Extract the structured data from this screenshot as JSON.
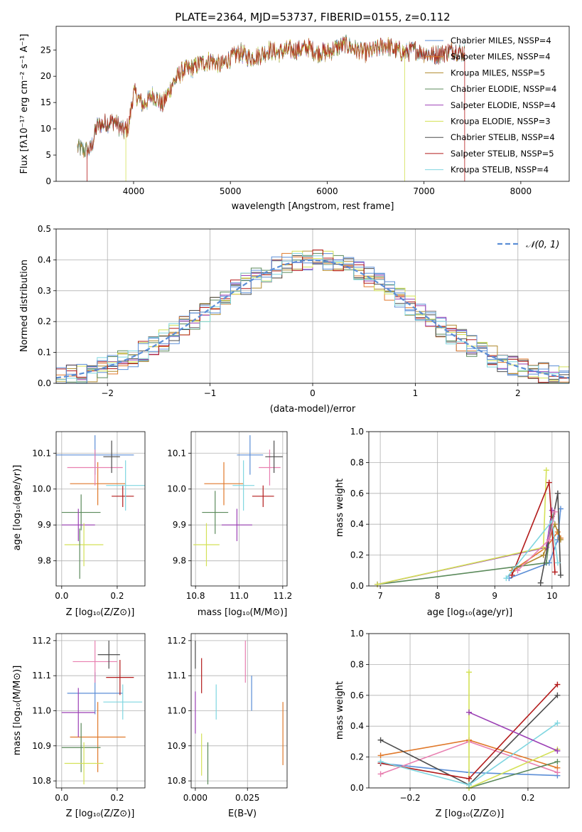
{
  "figure_title": "PLATE=2364, MJD=53737, FIBERID=0155, z=0.112",
  "colors": {
    "Chabrier MILES": "#5b8ed6",
    "Salpeter MILES": "#e0792b",
    "Kroupa MILES": "#b08a2e",
    "Chabrier ELODIE": "#5b8a5b",
    "Salpeter ELODIE": "#9b3fb5",
    "Kroupa ELODIE": "#d4e157",
    "Chabrier STELIB": "#4d4d4d",
    "Salpeter STELIB": "#b31b1b",
    "Kroupa STELIB": "#7fd6e0",
    "Normal": "#5b8ed6",
    "Pink": "#e87fb0"
  },
  "chart_data": [
    {
      "id": "spectrum",
      "type": "line",
      "title": "PLATE=2364, MJD=53737, FIBERID=0155, z=0.112",
      "xlabel": "wavelength [Angstrom, rest frame]",
      "ylabel": "Flux [fλ10⁻¹⁷ erg cm⁻² s⁻¹ A⁻¹]",
      "xlim": [
        3200,
        8500
      ],
      "ylim": [
        0,
        29.5
      ],
      "xticks": [
        4000,
        5000,
        6000,
        7000,
        8000
      ],
      "yticks": [
        0,
        5,
        10,
        15,
        20,
        25
      ],
      "legend_position": "top-right",
      "series_names": [
        "Chabrier MILES, NSSP=4",
        "Salpeter MILES, NSSP=4",
        "Kroupa MILES, NSSP=5",
        "Chabrier ELODIE, NSSP=4",
        "Salpeter ELODIE, NSSP=4",
        "Kroupa ELODIE, NSSP=3",
        "Chabrier STELIB, NSSP=4",
        "Salpeter STELIB, NSSP=5",
        "Kroupa STELIB, NSSP=4"
      ],
      "envelope": {
        "x": [
          3420,
          3500,
          3560,
          3620,
          3700,
          3800,
          3900,
          3950,
          4000,
          4100,
          4200,
          4300,
          4400,
          4500,
          4600,
          4700,
          4800,
          4900,
          5000,
          5100,
          5200,
          5300,
          5400,
          5500,
          5600,
          5700,
          5800,
          5900,
          6000,
          6100,
          6200,
          6300,
          6400,
          6500,
          6600,
          6700,
          6800,
          6900,
          7000,
          7100,
          7200,
          7300,
          7400
        ],
        "y": [
          6.5,
          5.8,
          6.2,
          10.5,
          11.0,
          11.5,
          9.5,
          10.5,
          17.0,
          14.5,
          16.5,
          14.5,
          18.5,
          21.0,
          21.5,
          22.5,
          23.0,
          22.0,
          23.5,
          24.5,
          23.5,
          24.0,
          25.0,
          24.5,
          25.0,
          25.0,
          25.5,
          24.5,
          24.5,
          25.5,
          26.0,
          25.0,
          24.5,
          25.0,
          26.0,
          25.0,
          24.5,
          25.0,
          24.5,
          24.0,
          24.5,
          25.0,
          24.5
        ]
      }
    },
    {
      "id": "residuals",
      "type": "line",
      "xlabel": "(data-model)/error",
      "ylabel": "Normed distribution",
      "xlim": [
        -2.5,
        2.5
      ],
      "ylim": [
        0,
        0.5
      ],
      "xticks": [
        -2,
        -1,
        0,
        1,
        2
      ],
      "yticks": [
        0.0,
        0.1,
        0.2,
        0.3,
        0.4,
        0.5
      ],
      "legend_label": "𝒩(0, 1)",
      "legend_position": "top-right",
      "grid": true
    },
    {
      "id": "age_vs_Z",
      "type": "scatter",
      "xlabel": "Z [log₁₀(Z/Z⊙)]",
      "ylabel": "age  [log₁₀(age/yr)]",
      "xlim": [
        -0.02,
        0.3
      ],
      "ylim": [
        9.73,
        10.16
      ],
      "xticks": [
        0.0,
        0.2
      ],
      "yticks": [
        9.8,
        9.9,
        10.0,
        10.1
      ],
      "grid": true,
      "points": [
        {
          "s": "Chabrier MILES",
          "x": 0.12,
          "xerr": 0.14,
          "y": 10.095,
          "yerr": 0.055
        },
        {
          "s": "Salpeter MILES",
          "x": 0.13,
          "xerr": 0.1,
          "y": 10.015,
          "yerr": 0.06
        },
        {
          "s": "Pink",
          "x": 0.12,
          "xerr": 0.1,
          "y": 10.06,
          "yerr": 0.05
        },
        {
          "s": "Chabrier ELODIE",
          "x": 0.07,
          "xerr": 0.07,
          "y": 9.935,
          "yerr": 0.05
        },
        {
          "s": "Salpeter ELODIE",
          "x": 0.06,
          "xerr": 0.06,
          "y": 9.9,
          "yerr": 0.045
        },
        {
          "s": "Kroupa ELODIE",
          "x": 0.08,
          "xerr": 0.07,
          "y": 9.845,
          "yerr": 0.06
        },
        {
          "s": "Chabrier STELIB",
          "x": 0.18,
          "xerr": 0.03,
          "y": 10.09,
          "yerr": 0.045
        },
        {
          "s": "Salpeter STELIB",
          "x": 0.22,
          "xerr": 0.04,
          "y": 9.98,
          "yerr": 0.03
        },
        {
          "s": "Kroupa STELIB",
          "x": 0.23,
          "xerr": 0.07,
          "y": 10.01,
          "yerr": 0.07
        },
        {
          "s": "Chabrier ELODIE",
          "x": 0.065,
          "xerr": 0.0,
          "y": 9.82,
          "yerr": 0.07
        }
      ]
    },
    {
      "id": "age_vs_mass",
      "type": "scatter",
      "xlabel": "mass [log₁₀(M/M⊙)]",
      "xlim": [
        10.78,
        11.22
      ],
      "ylim": [
        9.73,
        10.16
      ],
      "xticks": [
        10.8,
        11.0,
        11.2
      ],
      "yticks": [
        9.8,
        9.9,
        10.0,
        10.1
      ],
      "grid": true,
      "points": [
        {
          "s": "Chabrier MILES",
          "x": 11.05,
          "xerr": 0.06,
          "y": 10.095,
          "yerr": 0.055
        },
        {
          "s": "Salpeter MILES",
          "x": 10.93,
          "xerr": 0.09,
          "y": 10.015,
          "yerr": 0.06
        },
        {
          "s": "Pink",
          "x": 11.14,
          "xerr": 0.05,
          "y": 10.06,
          "yerr": 0.05
        },
        {
          "s": "Chabrier ELODIE",
          "x": 10.89,
          "xerr": 0.06,
          "y": 9.935,
          "yerr": 0.06
        },
        {
          "s": "Salpeter ELODIE",
          "x": 10.99,
          "xerr": 0.07,
          "y": 9.9,
          "yerr": 0.045
        },
        {
          "s": "Kroupa ELODIE",
          "x": 10.85,
          "xerr": 0.06,
          "y": 9.845,
          "yerr": 0.06
        },
        {
          "s": "Chabrier STELIB",
          "x": 11.16,
          "xerr": 0.04,
          "y": 10.09,
          "yerr": 0.045
        },
        {
          "s": "Salpeter STELIB",
          "x": 11.11,
          "xerr": 0.05,
          "y": 9.98,
          "yerr": 0.03
        },
        {
          "s": "Kroupa STELIB",
          "x": 11.02,
          "xerr": 0.05,
          "y": 10.01,
          "yerr": 0.07
        }
      ]
    },
    {
      "id": "weight_vs_age",
      "type": "line",
      "xlabel": "age  [log₁₀(age/yr)]",
      "ylabel": "mass weight",
      "xlim": [
        6.8,
        10.3
      ],
      "ylim": [
        0,
        1.0
      ],
      "xticks": [
        7,
        8,
        9,
        10
      ],
      "yticks": [
        0.0,
        0.2,
        0.4,
        0.6,
        0.8,
        1.0
      ],
      "grid": true,
      "series": [
        {
          "s": "Chabrier MILES",
          "x": [
            9.25,
            9.95,
            10.1,
            10.15
          ],
          "y": [
            0.05,
            0.15,
            0.3,
            0.5
          ]
        },
        {
          "s": "Salpeter MILES",
          "x": [
            9.35,
            9.9,
            10.1,
            10.15
          ],
          "y": [
            0.11,
            0.25,
            0.35,
            0.31
          ]
        },
        {
          "s": "Kroupa MILES",
          "x": [
            9.3,
            9.85,
            10.05,
            10.15
          ],
          "y": [
            0.1,
            0.2,
            0.4,
            0.3
          ]
        },
        {
          "s": "Chabrier ELODIE",
          "x": [
            6.95,
            9.9,
            10.0
          ],
          "y": [
            0.01,
            0.15,
            0.45
          ]
        },
        {
          "s": "Salpeter ELODIE",
          "x": [
            6.95,
            9.9,
            10.0
          ],
          "y": [
            0.01,
            0.25,
            0.49
          ]
        },
        {
          "s": "Kroupa ELODIE",
          "x": [
            6.95,
            9.85,
            9.9
          ],
          "y": [
            0.01,
            0.25,
            0.75
          ]
        },
        {
          "s": "Chabrier STELIB",
          "x": [
            9.8,
            10.1,
            10.15
          ],
          "y": [
            0.02,
            0.6,
            0.07
          ]
        },
        {
          "s": "Salpeter STELIB",
          "x": [
            9.3,
            9.95,
            10.05
          ],
          "y": [
            0.07,
            0.67,
            0.09
          ]
        },
        {
          "s": "Kroupa STELIB",
          "x": [
            9.2,
            10.0,
            10.1
          ],
          "y": [
            0.05,
            0.42,
            0.15
          ]
        },
        {
          "s": "Pink",
          "x": [
            9.4,
            9.95,
            10.05
          ],
          "y": [
            0.1,
            0.3,
            0.48
          ]
        }
      ]
    },
    {
      "id": "mass_vs_Z",
      "type": "scatter",
      "xlabel": "Z [log₁₀(Z/Z⊙)]",
      "ylabel": "mass [log₁₀(M/M⊙)]",
      "xlim": [
        -0.02,
        0.3
      ],
      "ylim": [
        10.78,
        11.22
      ],
      "xticks": [
        0.0,
        0.2
      ],
      "yticks": [
        10.8,
        10.9,
        11.0,
        11.1,
        11.2
      ],
      "grid": true,
      "points": [
        {
          "s": "Chabrier MILES",
          "x": 0.12,
          "xerr": 0.1,
          "y": 11.05,
          "yerr": 0.06
        },
        {
          "s": "Salpeter MILES",
          "x": 0.13,
          "xerr": 0.1,
          "y": 10.925,
          "yerr": 0.1
        },
        {
          "s": "Pink",
          "x": 0.12,
          "xerr": 0.08,
          "y": 11.14,
          "yerr": 0.06
        },
        {
          "s": "Chabrier ELODIE",
          "x": 0.07,
          "xerr": 0.07,
          "y": 10.895,
          "yerr": 0.07
        },
        {
          "s": "Salpeter ELODIE",
          "x": 0.06,
          "xerr": 0.06,
          "y": 10.995,
          "yerr": 0.07
        },
        {
          "s": "Kroupa ELODIE",
          "x": 0.08,
          "xerr": 0.07,
          "y": 10.85,
          "yerr": 0.06
        },
        {
          "s": "Chabrier STELIB",
          "x": 0.17,
          "xerr": 0.04,
          "y": 11.16,
          "yerr": 0.04
        },
        {
          "s": "Salpeter STELIB",
          "x": 0.21,
          "xerr": 0.05,
          "y": 11.095,
          "yerr": 0.05
        },
        {
          "s": "Kroupa STELIB",
          "x": 0.22,
          "xerr": 0.07,
          "y": 11.025,
          "yerr": 0.05
        }
      ]
    },
    {
      "id": "mass_vs_ebv",
      "type": "scatter",
      "xlabel": "E(B-V)",
      "xlim": [
        -0.002,
        0.044
      ],
      "ylim": [
        10.78,
        11.22
      ],
      "xticks": [
        0.0,
        0.025
      ],
      "xtick_labels": [
        "0.000",
        "0.025"
      ],
      "yticks": [
        10.8,
        10.9,
        11.0,
        11.1,
        11.2
      ],
      "grid": true,
      "points": [
        {
          "s": "Chabrier STELIB",
          "x": 0.0,
          "xerr": 0,
          "y": 11.16,
          "yerr": 0.04
        },
        {
          "s": "Salpeter ELODIE",
          "x": 0.0,
          "xerr": 0,
          "y": 10.995,
          "yerr": 0.06
        },
        {
          "s": "Salpeter STELIB",
          "x": 0.003,
          "xerr": 0,
          "y": 11.1,
          "yerr": 0.05
        },
        {
          "s": "Kroupa ELODIE",
          "x": 0.003,
          "xerr": 0,
          "y": 10.875,
          "yerr": 0.06
        },
        {
          "s": "Chabrier ELODIE",
          "x": 0.006,
          "xerr": 0,
          "y": 10.85,
          "yerr": 0.06
        },
        {
          "s": "Kroupa STELIB",
          "x": 0.01,
          "xerr": 0,
          "y": 11.025,
          "yerr": 0.05
        },
        {
          "s": "Pink",
          "x": 0.024,
          "xerr": 0,
          "y": 11.14,
          "yerr": 0.06
        },
        {
          "s": "Chabrier MILES",
          "x": 0.027,
          "xerr": 0,
          "y": 11.05,
          "yerr": 0.05
        },
        {
          "s": "Salpeter MILES",
          "x": 0.042,
          "xerr": 0,
          "y": 10.935,
          "yerr": 0.09
        }
      ]
    },
    {
      "id": "weight_vs_Z",
      "type": "line",
      "xlabel": "Z [log₁₀(Z/Z⊙)]",
      "ylabel": "mass weight",
      "xlim": [
        -0.34,
        0.34
      ],
      "ylim": [
        0,
        1.0
      ],
      "xticks": [
        -0.2,
        0.0,
        0.2
      ],
      "yticks": [
        0.0,
        0.2,
        0.4,
        0.6,
        0.8,
        1.0
      ],
      "grid": true,
      "series": [
        {
          "s": "Chabrier MILES",
          "x": [
            -0.3,
            0.0,
            0.3
          ],
          "y": [
            0.16,
            0.1,
            0.08
          ]
        },
        {
          "s": "Salpeter MILES",
          "x": [
            -0.3,
            0.0,
            0.3
          ],
          "y": [
            0.21,
            0.31,
            0.13
          ]
        },
        {
          "s": "Pink",
          "x": [
            -0.3,
            0.0,
            0.3
          ],
          "y": [
            0.09,
            0.3,
            0.1
          ]
        },
        {
          "s": "Chabrier ELODIE",
          "x": [
            0.0,
            0.3
          ],
          "y": [
            0.0,
            0.17
          ]
        },
        {
          "s": "Kroupa ELODIE",
          "x": [
            0.0,
            0.0,
            0.3
          ],
          "y": [
            0.75,
            0.0,
            0.25
          ]
        },
        {
          "s": "Chabrier STELIB",
          "x": [
            -0.3,
            0.0,
            0.3
          ],
          "y": [
            0.31,
            0.02,
            0.6
          ]
        },
        {
          "s": "Salpeter STELIB",
          "x": [
            -0.3,
            0.0,
            0.3
          ],
          "y": [
            0.16,
            0.06,
            0.67
          ]
        },
        {
          "s": "Kroupa STELIB",
          "x": [
            -0.3,
            0.0,
            0.3
          ],
          "y": [
            0.17,
            0.02,
            0.42
          ]
        },
        {
          "s": "Salpeter ELODIE",
          "x": [
            0.0,
            0.3
          ],
          "y": [
            0.49,
            0.24
          ]
        }
      ]
    }
  ]
}
